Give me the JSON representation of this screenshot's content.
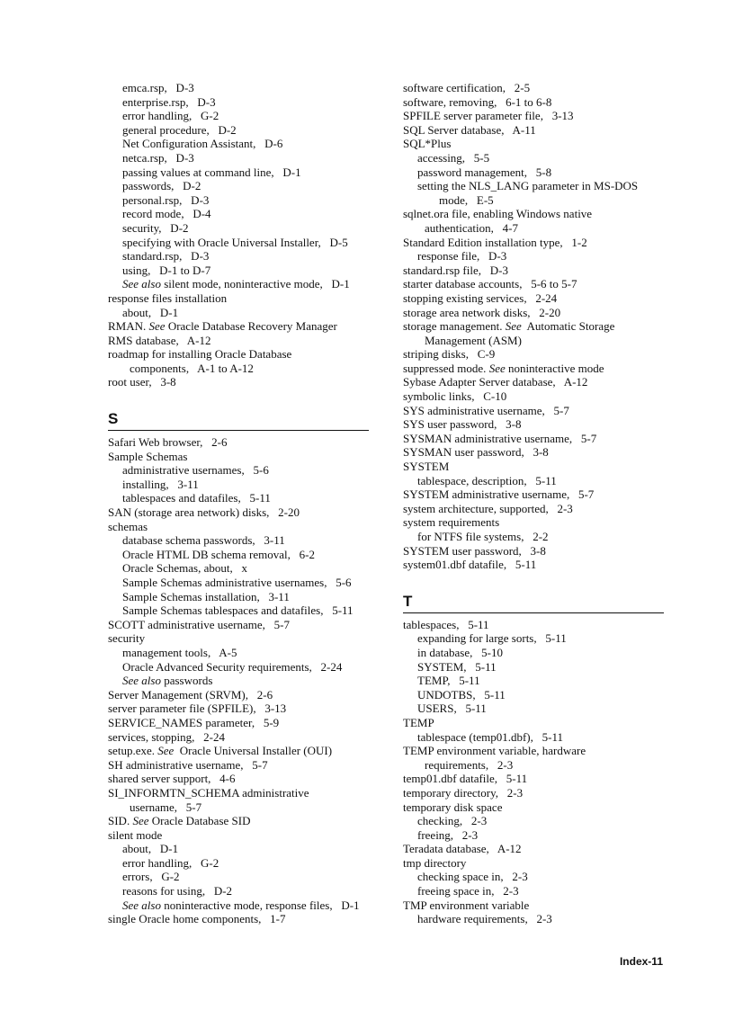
{
  "page_number": "Index-11",
  "left": {
    "before": [
      {
        "l": 1,
        "p": [
          {
            "t": "emca.rsp,   D-3"
          }
        ]
      },
      {
        "l": 1,
        "p": [
          {
            "t": "enterprise.rsp,   D-3"
          }
        ]
      },
      {
        "l": 1,
        "p": [
          {
            "t": "error handling,   G-2"
          }
        ]
      },
      {
        "l": 1,
        "p": [
          {
            "t": "general procedure,   D-2"
          }
        ]
      },
      {
        "l": 1,
        "p": [
          {
            "t": "Net Configuration Assistant,   D-6"
          }
        ]
      },
      {
        "l": 1,
        "p": [
          {
            "t": "netca.rsp,   D-3"
          }
        ]
      },
      {
        "l": 1,
        "p": [
          {
            "t": "passing values at command line,   D-1"
          }
        ]
      },
      {
        "l": 1,
        "p": [
          {
            "t": "passwords,   D-2"
          }
        ]
      },
      {
        "l": 1,
        "p": [
          {
            "t": "personal.rsp,   D-3"
          }
        ]
      },
      {
        "l": 1,
        "p": [
          {
            "t": "record mode,   D-4"
          }
        ]
      },
      {
        "l": 1,
        "p": [
          {
            "t": "security,   D-2"
          }
        ]
      },
      {
        "l": 1,
        "p": [
          {
            "t": "specifying with Oracle Universal Installer,   D-5"
          }
        ]
      },
      {
        "l": 1,
        "p": [
          {
            "t": "standard.rsp,   D-3"
          }
        ]
      },
      {
        "l": 1,
        "p": [
          {
            "t": "using,   D-1 to D-7"
          }
        ]
      },
      {
        "l": 1,
        "p": [
          {
            "t": "See also",
            "em": true
          },
          {
            "t": " silent mode, noninteractive mode,   D-1"
          }
        ]
      },
      {
        "l": 0,
        "p": [
          {
            "t": "response files installation"
          }
        ]
      },
      {
        "l": 1,
        "p": [
          {
            "t": "about,   D-1"
          }
        ]
      },
      {
        "l": 0,
        "p": [
          {
            "t": "RMAN. "
          },
          {
            "t": "See",
            "em": true
          },
          {
            "t": " Oracle Database Recovery Manager"
          }
        ]
      },
      {
        "l": 0,
        "p": [
          {
            "t": "RMS database,   A-12"
          }
        ]
      },
      {
        "l": 0,
        "p": [
          {
            "t": "roadmap for installing Oracle Database"
          }
        ]
      },
      {
        "l": 2,
        "p": [
          {
            "t": "components,   A-1 to A-12"
          }
        ]
      },
      {
        "l": 0,
        "p": [
          {
            "t": "root user,   3-8"
          }
        ]
      }
    ],
    "heading": "S",
    "after": [
      {
        "l": 0,
        "p": [
          {
            "t": "Safari Web browser,   2-6"
          }
        ]
      },
      {
        "l": 0,
        "p": [
          {
            "t": "Sample Schemas"
          }
        ]
      },
      {
        "l": 1,
        "p": [
          {
            "t": "administrative usernames,   5-6"
          }
        ]
      },
      {
        "l": 1,
        "p": [
          {
            "t": "installing,   3-11"
          }
        ]
      },
      {
        "l": 1,
        "p": [
          {
            "t": "tablespaces and datafiles,   5-11"
          }
        ]
      },
      {
        "l": 0,
        "p": [
          {
            "t": "SAN (storage area network) disks,   2-20"
          }
        ]
      },
      {
        "l": 0,
        "p": [
          {
            "t": "schemas"
          }
        ]
      },
      {
        "l": 1,
        "p": [
          {
            "t": "database schema passwords,   3-11"
          }
        ]
      },
      {
        "l": 1,
        "p": [
          {
            "t": "Oracle HTML DB schema removal,   6-2"
          }
        ]
      },
      {
        "l": 1,
        "p": [
          {
            "t": "Oracle Schemas, about,   x"
          }
        ]
      },
      {
        "l": 1,
        "p": [
          {
            "t": "Sample Schemas administrative usernames,   5-6"
          }
        ]
      },
      {
        "l": 1,
        "p": [
          {
            "t": "Sample Schemas installation,   3-11"
          }
        ]
      },
      {
        "l": 1,
        "p": [
          {
            "t": "Sample Schemas tablespaces and datafiles,   5-11"
          }
        ]
      },
      {
        "l": 0,
        "p": [
          {
            "t": "SCOTT administrative username,   5-7"
          }
        ]
      },
      {
        "l": 0,
        "p": [
          {
            "t": "security"
          }
        ]
      },
      {
        "l": 1,
        "p": [
          {
            "t": "management tools,   A-5"
          }
        ]
      },
      {
        "l": 1,
        "p": [
          {
            "t": "Oracle Advanced Security requirements,   2-24"
          }
        ]
      },
      {
        "l": 1,
        "p": [
          {
            "t": "See also",
            "em": true
          },
          {
            "t": " passwords"
          }
        ]
      },
      {
        "l": 0,
        "p": [
          {
            "t": "Server Management (SRVM),   2-6"
          }
        ]
      },
      {
        "l": 0,
        "p": [
          {
            "t": "server parameter file (SPFILE),   3-13"
          }
        ]
      },
      {
        "l": 0,
        "p": [
          {
            "t": "SERVICE_NAMES parameter,   5-9"
          }
        ]
      },
      {
        "l": 0,
        "p": [
          {
            "t": "services, stopping,   2-24"
          }
        ]
      },
      {
        "l": 0,
        "p": [
          {
            "t": "setup.exe. "
          },
          {
            "t": "See",
            "em": true
          },
          {
            "t": "  Oracle Universal Installer (OUI)"
          }
        ]
      },
      {
        "l": 0,
        "p": [
          {
            "t": "SH administrative username,   5-7"
          }
        ]
      },
      {
        "l": 0,
        "p": [
          {
            "t": "shared server support,   4-6"
          }
        ]
      },
      {
        "l": 0,
        "p": [
          {
            "t": "SI_INFORMTN_SCHEMA administrative"
          }
        ]
      },
      {
        "l": 2,
        "p": [
          {
            "t": "username,   5-7"
          }
        ]
      },
      {
        "l": 0,
        "p": [
          {
            "t": "SID. "
          },
          {
            "t": "See",
            "em": true
          },
          {
            "t": " Oracle Database SID"
          }
        ]
      },
      {
        "l": 0,
        "p": [
          {
            "t": "silent mode"
          }
        ]
      },
      {
        "l": 1,
        "p": [
          {
            "t": "about,   D-1"
          }
        ]
      },
      {
        "l": 1,
        "p": [
          {
            "t": "error handling,   G-2"
          }
        ]
      },
      {
        "l": 1,
        "p": [
          {
            "t": "errors,   G-2"
          }
        ]
      },
      {
        "l": 1,
        "p": [
          {
            "t": "reasons for using,   D-2"
          }
        ]
      },
      {
        "l": 1,
        "p": [
          {
            "t": "See also",
            "em": true
          },
          {
            "t": " noninteractive mode, response files,   D-1"
          }
        ]
      },
      {
        "l": 0,
        "p": [
          {
            "t": "single Oracle home components,   1-7"
          }
        ]
      }
    ]
  },
  "right": {
    "before": [
      {
        "l": 0,
        "p": [
          {
            "t": "software certification,   2-5"
          }
        ]
      },
      {
        "l": 0,
        "p": [
          {
            "t": "software, removing,   6-1 to 6-8"
          }
        ]
      },
      {
        "l": 0,
        "p": [
          {
            "t": "SPFILE server parameter file,   3-13"
          }
        ]
      },
      {
        "l": 0,
        "p": [
          {
            "t": "SQL Server database,   A-11"
          }
        ]
      },
      {
        "l": 0,
        "p": [
          {
            "t": "SQL*Plus"
          }
        ]
      },
      {
        "l": 1,
        "p": [
          {
            "t": "accessing,   5-5"
          }
        ]
      },
      {
        "l": 1,
        "p": [
          {
            "t": "password management,   5-8"
          }
        ]
      },
      {
        "l": 1,
        "p": [
          {
            "t": "setting the NLS_LANG parameter in MS-DOS"
          }
        ]
      },
      {
        "l": 3,
        "p": [
          {
            "t": "mode,   E-5"
          }
        ]
      },
      {
        "l": 0,
        "p": [
          {
            "t": "sqlnet.ora file, enabling Windows native"
          }
        ]
      },
      {
        "l": 2,
        "p": [
          {
            "t": "authentication,   4-7"
          }
        ]
      },
      {
        "l": 0,
        "p": [
          {
            "t": "Standard Edition installation type,   1-2"
          }
        ]
      },
      {
        "l": 1,
        "p": [
          {
            "t": "response file,   D-3"
          }
        ]
      },
      {
        "l": 0,
        "p": [
          {
            "t": "standard.rsp file,   D-3"
          }
        ]
      },
      {
        "l": 0,
        "p": [
          {
            "t": "starter database accounts,   5-6 to 5-7"
          }
        ]
      },
      {
        "l": 0,
        "p": [
          {
            "t": "stopping existing services,   2-24"
          }
        ]
      },
      {
        "l": 0,
        "p": [
          {
            "t": "storage area network disks,   2-20"
          }
        ]
      },
      {
        "l": 0,
        "p": [
          {
            "t": "storage management. "
          },
          {
            "t": "See",
            "em": true
          },
          {
            "t": "  Automatic Storage"
          }
        ]
      },
      {
        "l": 2,
        "p": [
          {
            "t": "Management (ASM)"
          }
        ]
      },
      {
        "l": 0,
        "p": [
          {
            "t": "striping disks,   C-9"
          }
        ]
      },
      {
        "l": 0,
        "p": [
          {
            "t": "suppressed mode. "
          },
          {
            "t": "See",
            "em": true
          },
          {
            "t": " noninteractive mode"
          }
        ]
      },
      {
        "l": 0,
        "p": [
          {
            "t": "Sybase Adapter Server database,   A-12"
          }
        ]
      },
      {
        "l": 0,
        "p": [
          {
            "t": "symbolic links,   C-10"
          }
        ]
      },
      {
        "l": 0,
        "p": [
          {
            "t": "SYS administrative username,   5-7"
          }
        ]
      },
      {
        "l": 0,
        "p": [
          {
            "t": "SYS user password,   3-8"
          }
        ]
      },
      {
        "l": 0,
        "p": [
          {
            "t": "SYSMAN administrative username,   5-7"
          }
        ]
      },
      {
        "l": 0,
        "p": [
          {
            "t": "SYSMAN user password,   3-8"
          }
        ]
      },
      {
        "l": 0,
        "p": [
          {
            "t": "SYSTEM"
          }
        ]
      },
      {
        "l": 1,
        "p": [
          {
            "t": "tablespace, description,   5-11"
          }
        ]
      },
      {
        "l": 0,
        "p": [
          {
            "t": "SYSTEM administrative username,   5-7"
          }
        ]
      },
      {
        "l": 0,
        "p": [
          {
            "t": "system architecture, supported,   2-3"
          }
        ]
      },
      {
        "l": 0,
        "p": [
          {
            "t": "system requirements"
          }
        ]
      },
      {
        "l": 1,
        "p": [
          {
            "t": "for NTFS file systems,   2-2"
          }
        ]
      },
      {
        "l": 0,
        "p": [
          {
            "t": "SYSTEM user password,   3-8"
          }
        ]
      },
      {
        "l": 0,
        "p": [
          {
            "t": "system01.dbf datafile,   5-11"
          }
        ]
      }
    ],
    "heading": "T",
    "after": [
      {
        "l": 0,
        "p": [
          {
            "t": "tablespaces,   5-11"
          }
        ]
      },
      {
        "l": 1,
        "p": [
          {
            "t": "expanding for large sorts,   5-11"
          }
        ]
      },
      {
        "l": 1,
        "p": [
          {
            "t": "in database,   5-10"
          }
        ]
      },
      {
        "l": 1,
        "p": [
          {
            "t": "SYSTEM,   5-11"
          }
        ]
      },
      {
        "l": 1,
        "p": [
          {
            "t": "TEMP,   5-11"
          }
        ]
      },
      {
        "l": 1,
        "p": [
          {
            "t": "UNDOTBS,   5-11"
          }
        ]
      },
      {
        "l": 1,
        "p": [
          {
            "t": "USERS,   5-11"
          }
        ]
      },
      {
        "l": 0,
        "p": [
          {
            "t": "TEMP"
          }
        ]
      },
      {
        "l": 1,
        "p": [
          {
            "t": "tablespace (temp01.dbf),   5-11"
          }
        ]
      },
      {
        "l": 0,
        "p": [
          {
            "t": "TEMP environment variable, hardware"
          }
        ]
      },
      {
        "l": 2,
        "p": [
          {
            "t": "requirements,   2-3"
          }
        ]
      },
      {
        "l": 0,
        "p": [
          {
            "t": "temp01.dbf datafile,   5-11"
          }
        ]
      },
      {
        "l": 0,
        "p": [
          {
            "t": "temporary directory,   2-3"
          }
        ]
      },
      {
        "l": 0,
        "p": [
          {
            "t": "temporary disk space"
          }
        ]
      },
      {
        "l": 1,
        "p": [
          {
            "t": "checking,   2-3"
          }
        ]
      },
      {
        "l": 1,
        "p": [
          {
            "t": "freeing,   2-3"
          }
        ]
      },
      {
        "l": 0,
        "p": [
          {
            "t": "Teradata database,   A-12"
          }
        ]
      },
      {
        "l": 0,
        "p": [
          {
            "t": "tmp directory"
          }
        ]
      },
      {
        "l": 1,
        "p": [
          {
            "t": "checking space in,   2-3"
          }
        ]
      },
      {
        "l": 1,
        "p": [
          {
            "t": "freeing space in,   2-3"
          }
        ]
      },
      {
        "l": 0,
        "p": [
          {
            "t": "TMP environment variable"
          }
        ]
      },
      {
        "l": 1,
        "p": [
          {
            "t": "hardware requirements,   2-3"
          }
        ]
      }
    ]
  }
}
